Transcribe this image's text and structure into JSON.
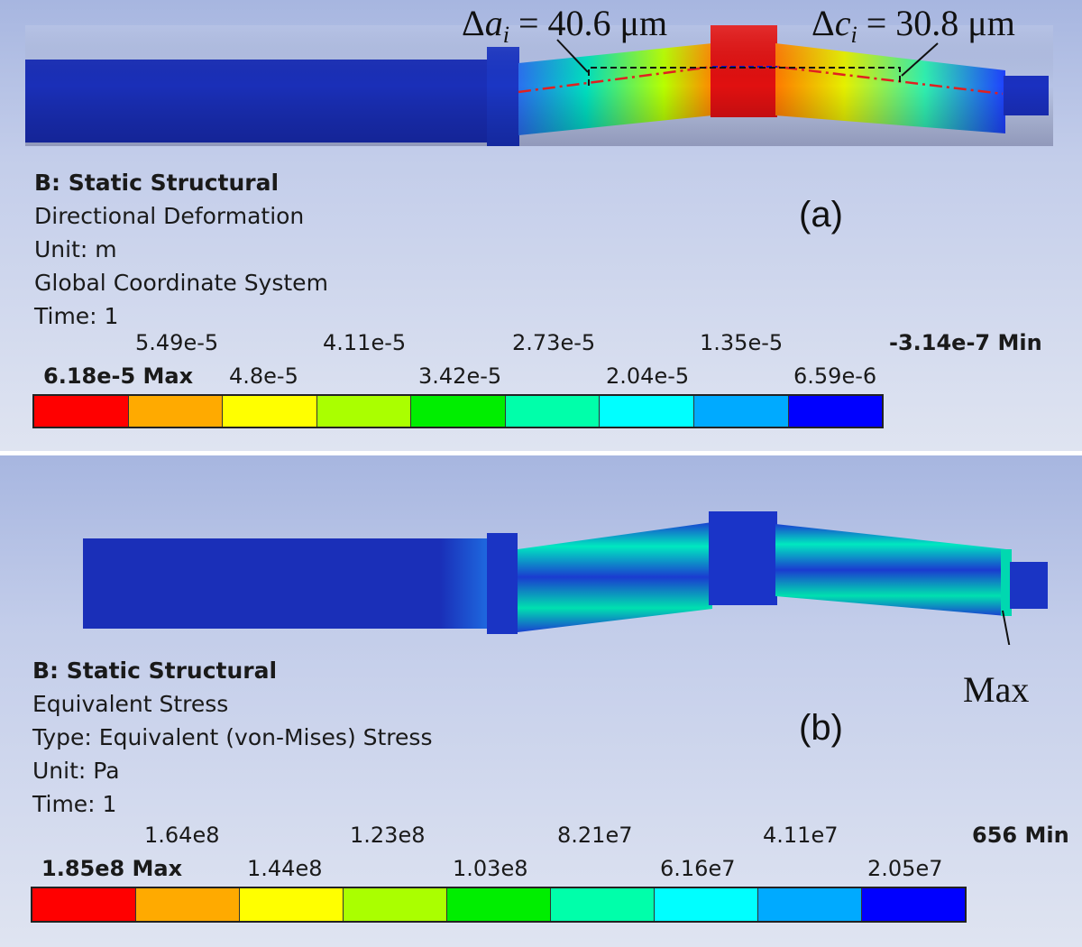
{
  "panel_a": {
    "tag": "(a)",
    "heading": "B: Static Structural",
    "info_lines": [
      "Directional Deformation",
      "Unit: m",
      "Global Coordinate System",
      "Time: 1"
    ],
    "legend_top": [
      "5.49e-5",
      "4.11e-5",
      "2.73e-5",
      "1.35e-5"
    ],
    "legend_min": "-3.14e-7 Min",
    "legend_max": "6.18e-5 Max",
    "legend_bottom": [
      "4.8e-5",
      "3.42e-5",
      "2.04e-5",
      "6.59e-6"
    ],
    "annotation_left": {
      "symbol": "Δ",
      "var": "a",
      "sub": "i",
      "text": " = 40.6 μm"
    },
    "annotation_right": {
      "symbol": "Δ",
      "var": "c",
      "sub": "i",
      "text": " = 30.8 μm"
    }
  },
  "panel_b": {
    "tag": "(b)",
    "heading": "B: Static Structural",
    "info_lines": [
      "Equivalent Stress",
      "Type: Equivalent (von-Mises) Stress",
      "Unit: Pa",
      "Time: 1"
    ],
    "legend_top": [
      "1.64e8",
      "1.23e8",
      "8.21e7",
      "4.11e7"
    ],
    "legend_min": "656 Min",
    "legend_max": "1.85e8 Max",
    "legend_bottom": [
      "1.44e8",
      "1.03e8",
      "6.16e7",
      "2.05e7"
    ],
    "max_label": "Max"
  },
  "colors": {
    "scale": [
      "#ff0000",
      "#ffaa00",
      "#ffff00",
      "#aaff00",
      "#00ee00",
      "#00ffaa",
      "#00ffff",
      "#00aaff",
      "#0000ff"
    ],
    "shaft": "#1a2fb8"
  }
}
